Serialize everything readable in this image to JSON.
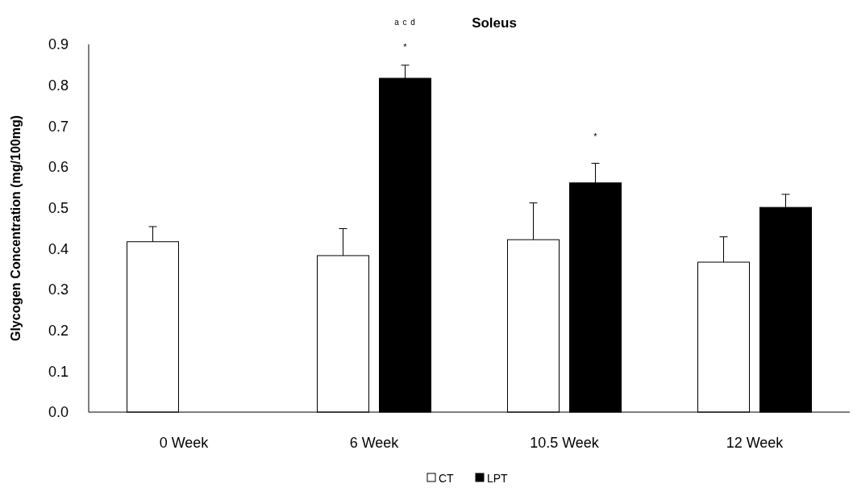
{
  "chart_data": {
    "type": "bar",
    "title": "Soleus",
    "ylabel": "Glycogen Concentration (mg/100mg)",
    "categories": [
      "0 Week",
      "6 Week",
      "10.5 Week",
      "12 Week"
    ],
    "series": [
      {
        "name": "CT",
        "color": "#ffffff",
        "values": [
          0.417,
          0.383,
          0.422,
          0.367
        ],
        "errors": [
          [
            0.417,
            0.454
          ],
          [
            0.383,
            0.449
          ],
          [
            0.422,
            0.512
          ],
          [
            0.367,
            0.429
          ]
        ]
      },
      {
        "name": "LPT",
        "color": "#000000",
        "values": [
          null,
          0.817,
          0.561,
          0.501
        ],
        "errors": [
          null,
          [
            0.817,
            0.849
          ],
          [
            0.561,
            0.609
          ],
          [
            0.501,
            0.533
          ]
        ]
      }
    ],
    "ylim": [
      0,
      0.9
    ],
    "yticks": [
      {
        "value": 0,
        "label": "0.0"
      },
      0.1,
      0.2,
      0.3,
      0.4,
      0.5,
      0.6,
      0.7,
      0.8,
      0.9
    ],
    "grid": false,
    "legend": "bottom",
    "annotations": [
      "a c d",
      "*",
      "*"
    ]
  }
}
